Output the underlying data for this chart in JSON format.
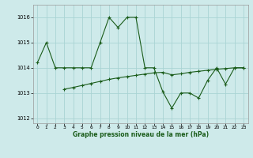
{
  "title": "Graphe pression niveau de la mer (hPa)",
  "bg_color": "#ceeaea",
  "grid_color": "#aad4d4",
  "line_color": "#1a5c1a",
  "xlim": [
    -0.5,
    23.5
  ],
  "ylim": [
    1011.8,
    1016.5
  ],
  "yticks": [
    1012,
    1013,
    1014,
    1015,
    1016
  ],
  "xticks": [
    0,
    1,
    2,
    3,
    4,
    5,
    6,
    7,
    8,
    9,
    10,
    11,
    12,
    13,
    14,
    15,
    16,
    17,
    18,
    19,
    20,
    21,
    22,
    23
  ],
  "series1_x": [
    0,
    1,
    2,
    3,
    4,
    5,
    6,
    7,
    8,
    9,
    10,
    11,
    12,
    13,
    14,
    15,
    16,
    17,
    18,
    19,
    20,
    21,
    22,
    23
  ],
  "series1_y": [
    1014.2,
    1015.0,
    1014.0,
    1014.0,
    1014.0,
    1014.0,
    1014.0,
    1015.0,
    1016.0,
    1015.6,
    1016.0,
    1016.0,
    1014.0,
    1014.0,
    1013.05,
    1012.4,
    1013.0,
    1013.0,
    1012.8,
    1013.5,
    1014.0,
    1013.35,
    1014.0,
    1014.0
  ],
  "series2_x": [
    3,
    4,
    5,
    6,
    7,
    8,
    9,
    10,
    11,
    12,
    13,
    14,
    15,
    16,
    17,
    18,
    19,
    20,
    21,
    22,
    23
  ],
  "series2_y": [
    1013.15,
    1013.22,
    1013.3,
    1013.38,
    1013.46,
    1013.54,
    1013.6,
    1013.65,
    1013.7,
    1013.75,
    1013.8,
    1013.82,
    1013.72,
    1013.76,
    1013.82,
    1013.86,
    1013.9,
    1013.94,
    1013.97,
    1014.0,
    1014.0
  ]
}
